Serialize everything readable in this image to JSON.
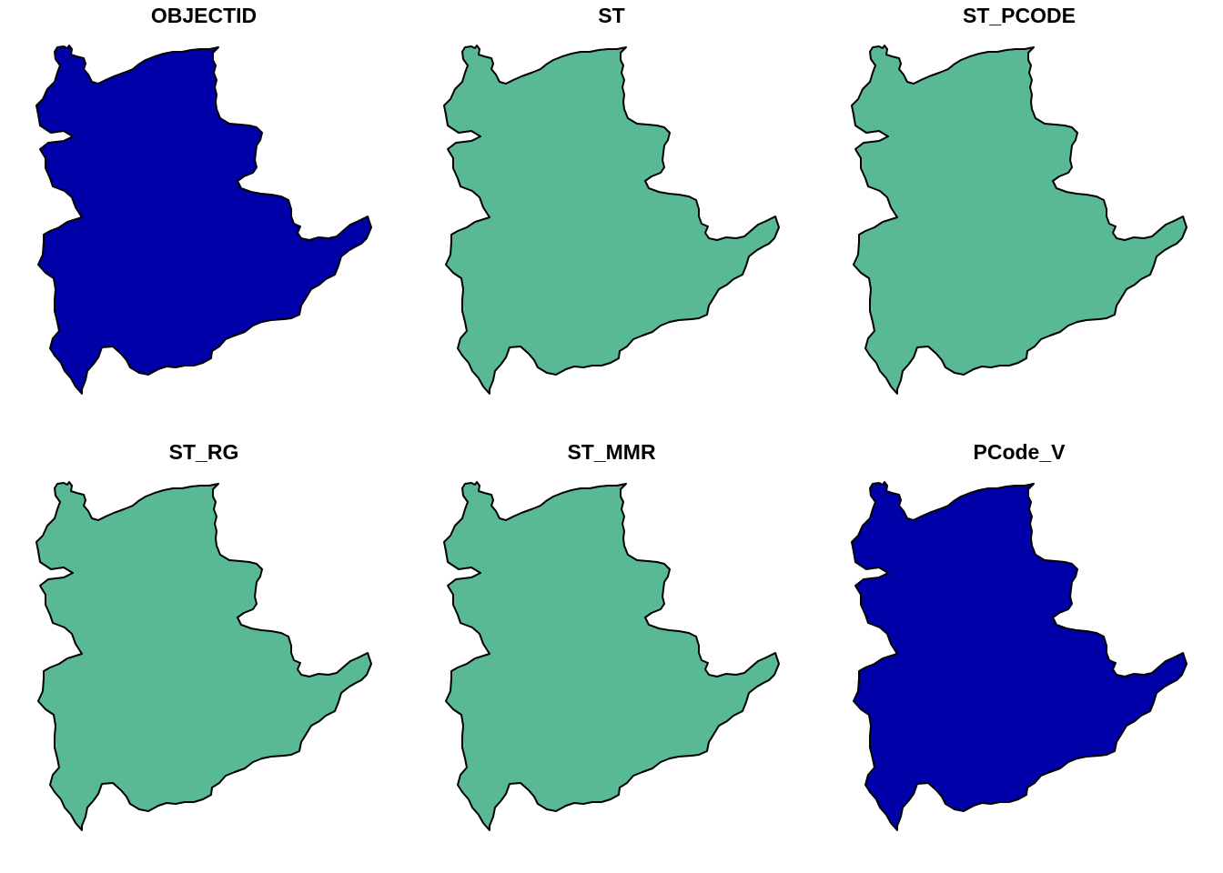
{
  "figure": {
    "type": "small-multiple choropleth maps",
    "region_outline_color": "#000000",
    "background": "#ffffff"
  },
  "panels": [
    {
      "title": "OBJECTID",
      "fill": "#0000A8"
    },
    {
      "title": "ST",
      "fill": "#58B994"
    },
    {
      "title": "ST_PCODE",
      "fill": "#58B994"
    },
    {
      "title": "ST_RG",
      "fill": "#58B994"
    },
    {
      "title": "ST_MMR",
      "fill": "#58B994"
    },
    {
      "title": "PCode_V",
      "fill": "#0000A8"
    }
  ]
}
